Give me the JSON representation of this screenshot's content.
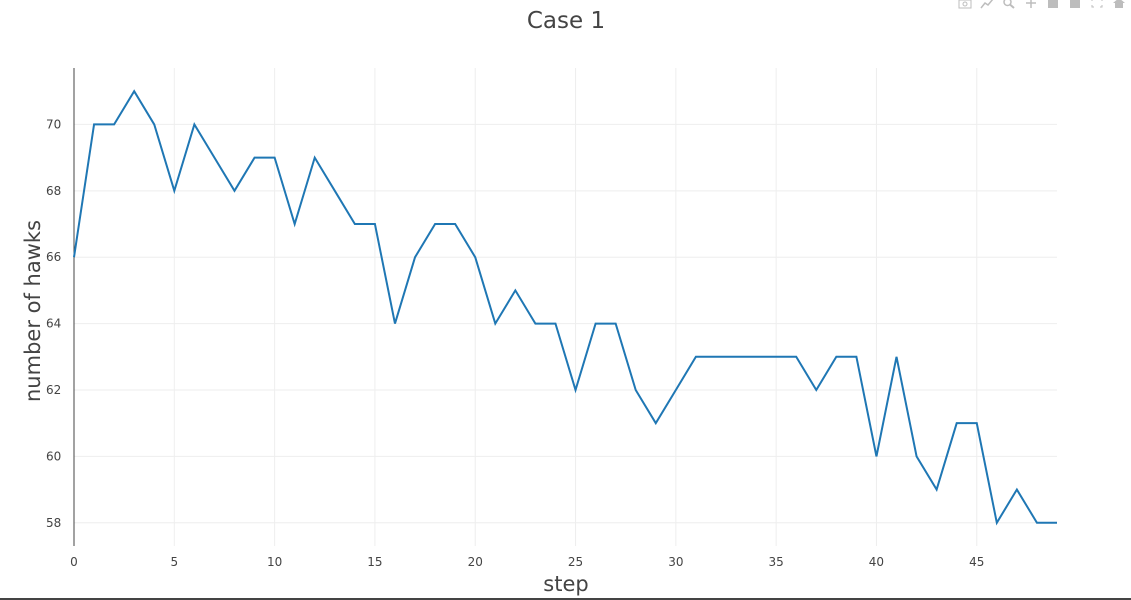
{
  "chart_data": {
    "type": "line",
    "title": "Case 1",
    "xlabel": "step",
    "ylabel": "number of hawks",
    "xlim": [
      0,
      49
    ],
    "ylim": [
      57.3,
      71.7
    ],
    "x_ticks": [
      0,
      5,
      10,
      15,
      20,
      25,
      30,
      35,
      40,
      45
    ],
    "y_ticks": [
      58,
      60,
      62,
      64,
      66,
      68,
      70
    ],
    "grid": true,
    "series": [
      {
        "color": "#1f77b4",
        "x": [
          0,
          1,
          2,
          3,
          4,
          5,
          6,
          7,
          8,
          9,
          10,
          11,
          12,
          13,
          14,
          15,
          16,
          17,
          18,
          19,
          20,
          21,
          22,
          23,
          24,
          25,
          26,
          27,
          28,
          29,
          30,
          31,
          32,
          33,
          34,
          35,
          36,
          37,
          38,
          39,
          40,
          41,
          42,
          43,
          44,
          45,
          46,
          47,
          48,
          49
        ],
        "y": [
          66,
          70,
          70,
          71,
          70,
          68,
          70,
          69,
          68,
          69,
          69,
          67,
          69,
          68,
          67,
          67,
          64,
          66,
          67,
          67,
          66,
          64,
          65,
          64,
          64,
          62,
          64,
          64,
          62,
          61,
          62,
          63,
          63,
          63,
          63,
          63,
          63,
          62,
          63,
          63,
          60,
          63,
          60,
          59,
          61,
          61,
          58,
          59,
          58,
          58
        ]
      }
    ]
  },
  "modebar": {
    "icons": [
      "camera-icon",
      "edit-chart-icon",
      "zoom-icon",
      "pan-icon",
      "zoom-in-icon",
      "zoom-out-icon",
      "autoscale-icon",
      "home-icon"
    ]
  }
}
